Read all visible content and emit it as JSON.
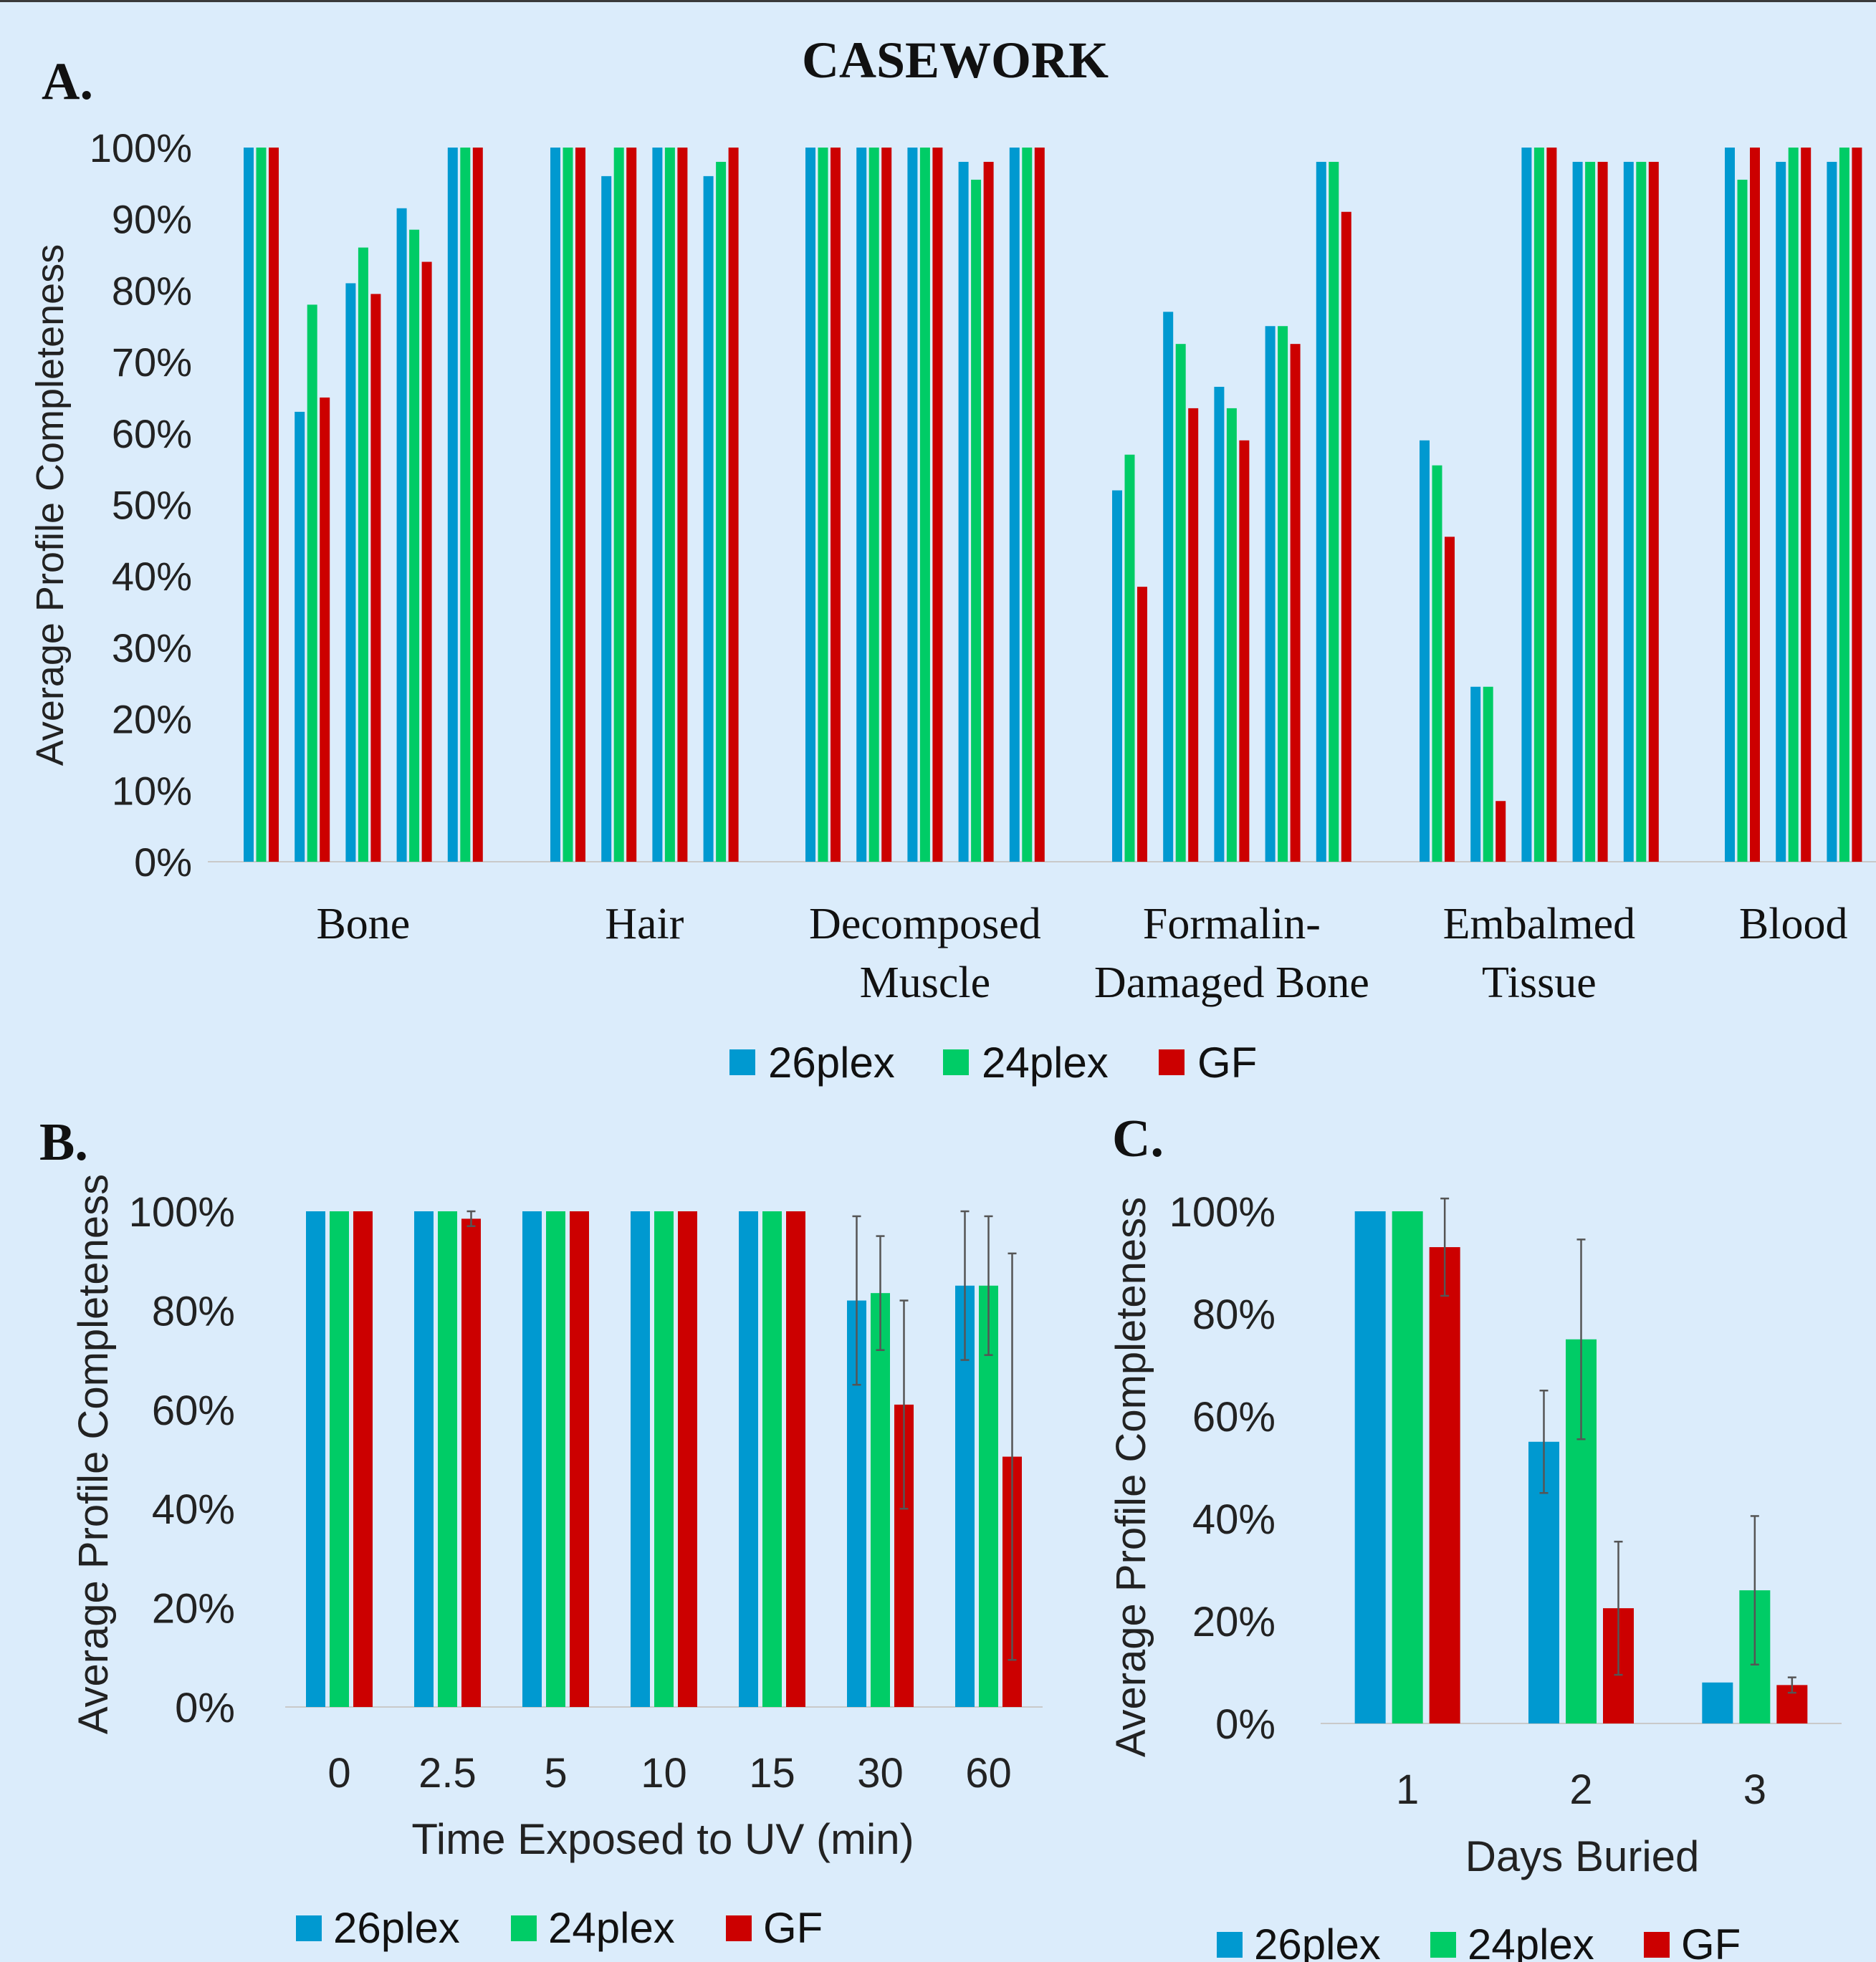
{
  "colors": {
    "26plex": "#0099d0",
    "24plex": "#00cc66",
    "GF": "#cc0000",
    "background": "#dbecfb"
  },
  "panel_labels": {
    "a": "A.",
    "b": "B.",
    "c": "C."
  },
  "chart_data": [
    {
      "id": "A",
      "type": "bar",
      "title": "CASEWORK",
      "ylabel": "Average Profile Completeness",
      "xlabel": "",
      "ylim": [
        0,
        100
      ],
      "y_ticks": [
        "0%",
        "10%",
        "20%",
        "30%",
        "40%",
        "50%",
        "60%",
        "70%",
        "80%",
        "90%",
        "100%"
      ],
      "grid": false,
      "legend": "bottom",
      "series_names": [
        "26plex",
        "24plex",
        "GF"
      ],
      "groups": [
        {
          "label_lines": [
            "Bone"
          ],
          "samples": [
            [
              100,
              100,
              100
            ],
            [
              63,
              78,
              65
            ],
            [
              81,
              86,
              79.5
            ],
            [
              91.5,
              88.5,
              84
            ],
            [
              100,
              100,
              100
            ]
          ]
        },
        {
          "label_lines": [
            "Hair"
          ],
          "samples": [
            [
              100,
              100,
              100
            ],
            [
              96,
              100,
              100
            ],
            [
              100,
              100,
              100
            ],
            [
              96,
              98,
              100
            ]
          ]
        },
        {
          "label_lines": [
            "Decomposed",
            "Muscle"
          ],
          "samples": [
            [
              100,
              100,
              100
            ],
            [
              100,
              100,
              100
            ],
            [
              100,
              100,
              100
            ],
            [
              98,
              95.5,
              98
            ],
            [
              100,
              100,
              100
            ]
          ]
        },
        {
          "label_lines": [
            "Formalin-",
            "Damaged Bone"
          ],
          "samples": [
            [
              52,
              57,
              38.5
            ],
            [
              77,
              72.5,
              63.5
            ],
            [
              66.5,
              63.5,
              59
            ],
            [
              75,
              75,
              72.5
            ],
            [
              98,
              98,
              91
            ]
          ]
        },
        {
          "label_lines": [
            "Embalmed",
            "Tissue"
          ],
          "samples": [
            [
              59,
              55.5,
              45.5
            ],
            [
              24.5,
              24.5,
              8.5
            ],
            [
              100,
              100,
              100
            ],
            [
              98,
              98,
              98
            ],
            [
              98,
              98,
              98
            ]
          ]
        },
        {
          "label_lines": [
            "Blood"
          ],
          "samples": [
            [
              100,
              95.5,
              100
            ],
            [
              98,
              100,
              100
            ],
            [
              98,
              100,
              100
            ]
          ]
        }
      ]
    },
    {
      "id": "B",
      "type": "bar",
      "title": "",
      "ylabel": "Average Profile Completeness",
      "xlabel": "Time Exposed to UV (min)",
      "ylim": [
        0,
        100
      ],
      "y_ticks": [
        "0%",
        "20%",
        "40%",
        "60%",
        "80%",
        "100%"
      ],
      "grid": false,
      "legend": "bottom",
      "categories": [
        "0",
        "2.5",
        "5",
        "10",
        "15",
        "30",
        "60"
      ],
      "series": [
        {
          "name": "26plex",
          "values": [
            100,
            100,
            100,
            100,
            100,
            82,
            85
          ],
          "errors": [
            0,
            0,
            0,
            0,
            0,
            17,
            15
          ]
        },
        {
          "name": "24plex",
          "values": [
            100,
            100,
            100,
            100,
            100,
            83.5,
            85
          ],
          "errors": [
            0,
            0,
            0,
            0,
            0,
            11.5,
            14
          ]
        },
        {
          "name": "GF",
          "values": [
            100,
            98.5,
            100,
            100,
            100,
            61,
            50.5
          ],
          "errors": [
            0,
            1.5,
            0,
            0,
            0,
            21,
            41
          ]
        }
      ]
    },
    {
      "id": "C",
      "type": "bar",
      "title": "",
      "ylabel": "Average Profile Completeness",
      "xlabel": "Days Buried",
      "ylim": [
        0,
        100
      ],
      "y_ticks": [
        "0%",
        "20%",
        "40%",
        "60%",
        "80%",
        "100%"
      ],
      "grid": false,
      "legend": "bottom",
      "categories": [
        "1",
        "2",
        "3"
      ],
      "series": [
        {
          "name": "26plex",
          "values": [
            100,
            55,
            8
          ],
          "errors": [
            0,
            10,
            0
          ]
        },
        {
          "name": "24plex",
          "values": [
            100,
            75,
            26
          ],
          "errors": [
            0,
            19.5,
            14.5
          ]
        },
        {
          "name": "GF",
          "values": [
            93,
            22.5,
            7.5
          ],
          "errors": [
            9.5,
            13,
            1.5
          ]
        }
      ]
    }
  ]
}
